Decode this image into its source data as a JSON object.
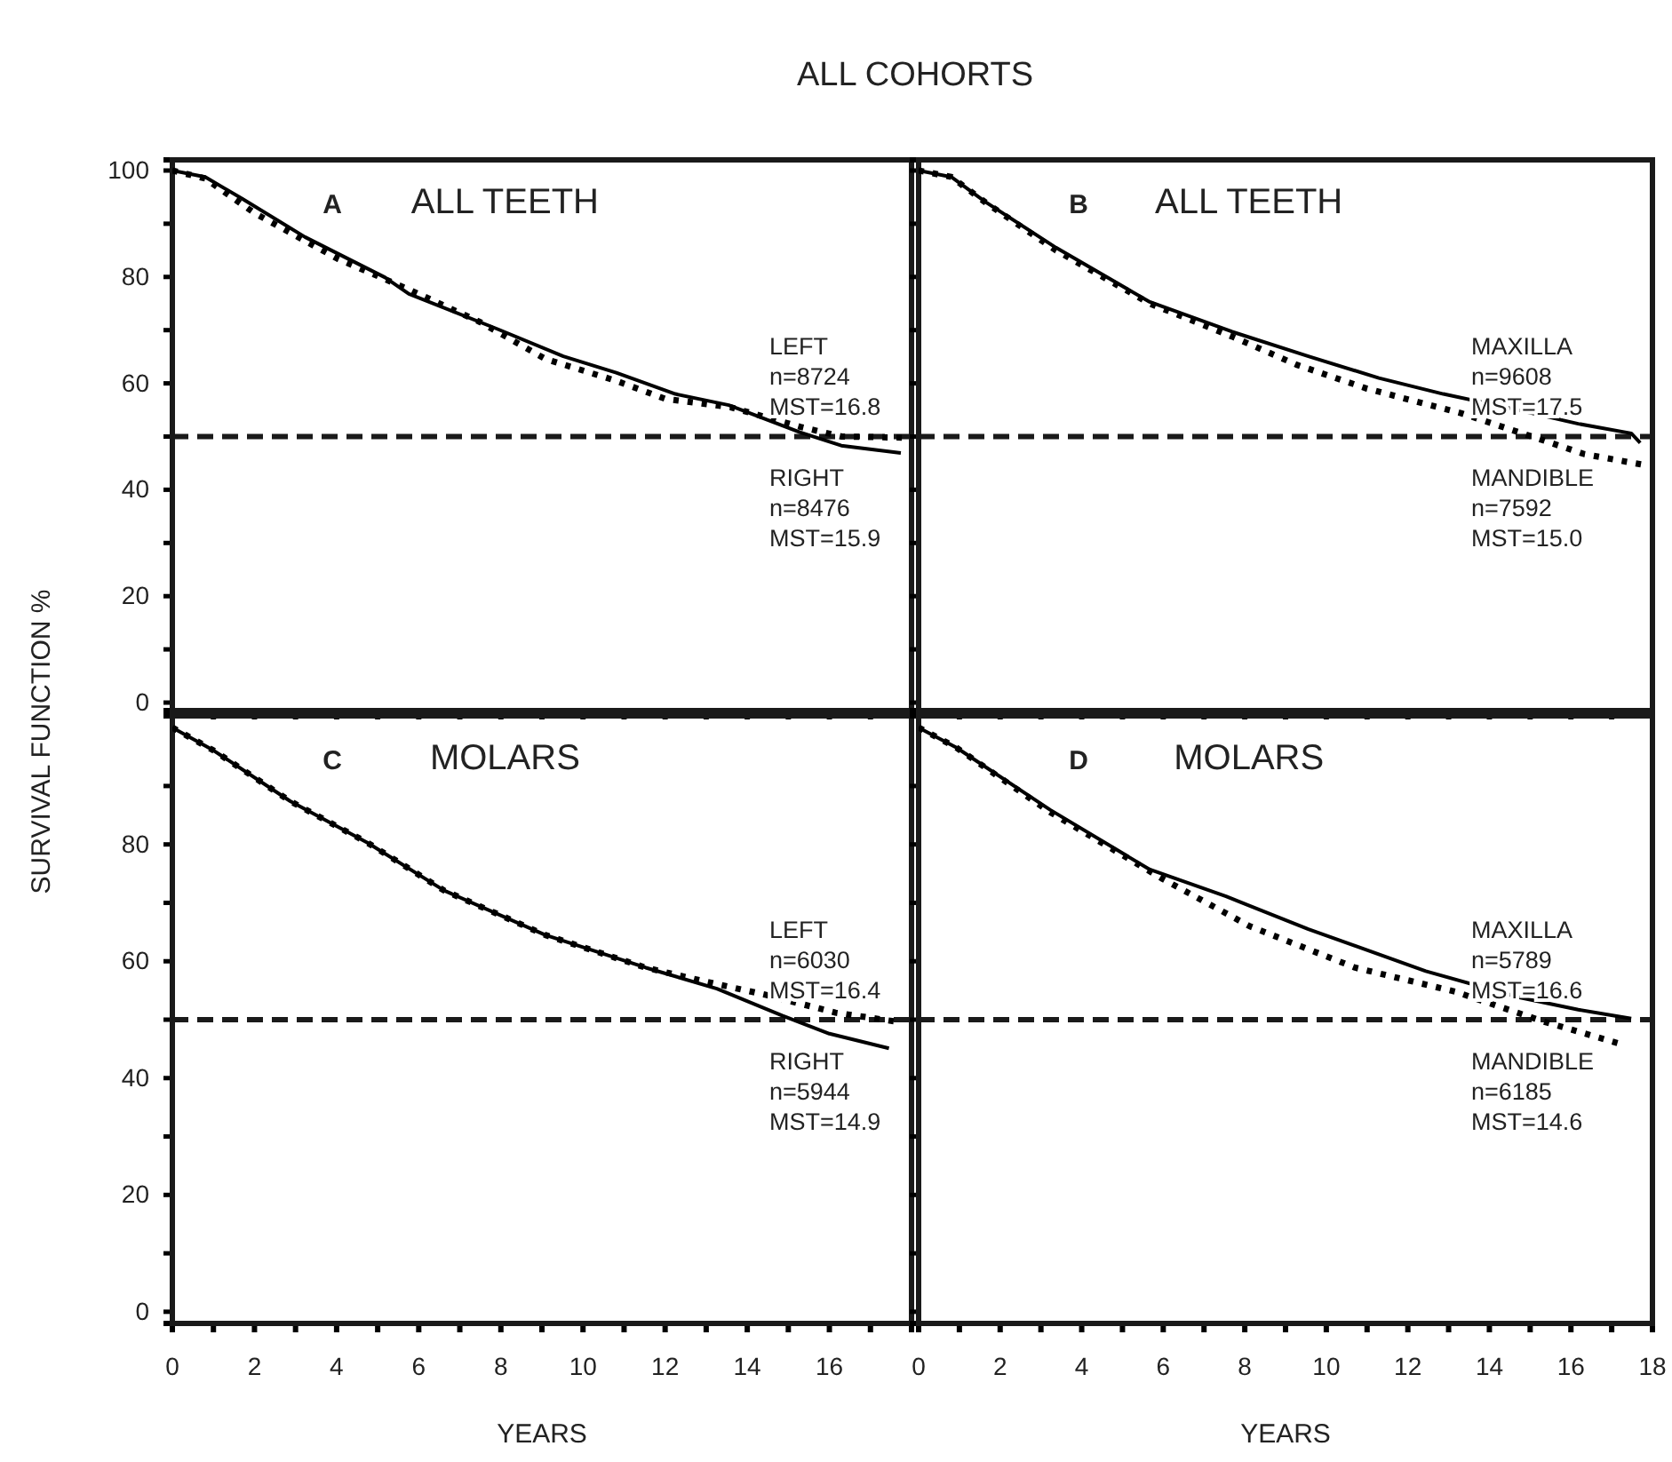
{
  "chart_data": [
    {
      "type": "line",
      "title": "ALL TEETH",
      "ylabel": "SURVIVAL FUNCTION  %",
      "annotations": [
        "ALL COHORTS",
        "A",
        "n=8724",
        "MST=16.8",
        "n=8476",
        "MST=15.9"
      ],
      "xlim": [
        0,
        18
      ],
      "xticks": [
        0,
        {
          "value": 1,
          "label": null
        },
        2,
        {
          "value": 3,
          "label": null
        },
        4,
        {
          "value": 5,
          "label": null
        },
        6,
        {
          "value": 7,
          "label": null
        },
        8,
        {
          "value": 9,
          "label": null
        },
        10,
        {
          "value": 11,
          "label": null
        },
        12,
        {
          "value": 13,
          "label": null
        },
        14,
        {
          "value": 15,
          "label": null
        },
        16,
        {
          "value": 17,
          "label": null
        }
      ],
      "ylim": [
        -1.5,
        102
      ],
      "yticks": [
        0,
        {
          "value": 10,
          "label": null
        },
        20,
        {
          "value": 30,
          "label": null
        },
        40,
        {
          "value": 50,
          "label": null
        },
        60,
        {
          "value": 70,
          "label": null
        },
        80,
        {
          "value": 90,
          "label": null
        },
        100
      ],
      "tick_labels": "y",
      "ref_lines": [
        {
          "axis": "y",
          "value": 50,
          "line_style": "dashed"
        }
      ],
      "series": [
        {
          "name": "LEFT",
          "color": "#000000",
          "line_style": "dotted",
          "x": [
            0,
            0.8,
            2.0,
            4.03,
            5.8,
            7.5,
            9.08,
            10.8,
            12.0,
            13.6,
            15.3,
            16.3,
            17.8
          ],
          "values": [
            100,
            98.5,
            92.0,
            83.4,
            77.5,
            71.5,
            64.6,
            60.5,
            57.1,
            55.5,
            51.8,
            50.0,
            49.8
          ]
        },
        {
          "name": "RIGHT",
          "color": "#000000",
          "line_style": "solid",
          "x": [
            0,
            0.8,
            1.72,
            3.23,
            5.18,
            5.76,
            7.92,
            9.52,
            10.81,
            12.25,
            13.55,
            15.28,
            16.29,
            17.74
          ],
          "values": [
            100,
            98.8,
            94.6,
            87.5,
            79.9,
            76.8,
            70.2,
            65.1,
            62.0,
            58.0,
            55.9,
            50.8,
            48.3,
            46.9
          ]
        }
      ]
    },
    {
      "type": "line",
      "title": "ALL TEETH",
      "annotations": [
        "B",
        "n=9608",
        "MST=17.5",
        "n=7592",
        "MST=15.0"
      ],
      "xlim": [
        0,
        18
      ],
      "xticks": [
        0,
        {
          "value": 1,
          "label": null
        },
        2,
        {
          "value": 3,
          "label": null
        },
        4,
        {
          "value": 5,
          "label": null
        },
        6,
        {
          "value": 7,
          "label": null
        },
        8,
        {
          "value": 9,
          "label": null
        },
        10,
        {
          "value": 11,
          "label": null
        },
        12,
        {
          "value": 13,
          "label": null
        },
        14,
        {
          "value": 15,
          "label": null
        },
        16,
        {
          "value": 17,
          "label": null
        },
        18
      ],
      "ylim": [
        -1.5,
        102
      ],
      "yticks": [
        0,
        10,
        20,
        30,
        40,
        50,
        60,
        70,
        80,
        90,
        100
      ],
      "tick_labels": false,
      "ref_lines": [
        {
          "axis": "y",
          "value": 50,
          "line_style": "dashed"
        }
      ],
      "series": [
        {
          "name": "MAXILLA",
          "color": "#000000",
          "line_style": "solid",
          "x": [
            0,
            0.8,
            1.64,
            3.37,
            5.67,
            7.69,
            9.56,
            11.29,
            12.87,
            14.46,
            16.18,
            17.48,
            17.7
          ],
          "values": [
            100,
            98.8,
            94.1,
            85.5,
            75.3,
            69.7,
            65.1,
            61.0,
            58.0,
            55.4,
            52.4,
            50.6,
            48.8
          ]
        },
        {
          "name": "MANDIBLE",
          "color": "#000000",
          "line_style": "dotted",
          "x": [
            0,
            0.8,
            1.64,
            3.37,
            5.67,
            7.69,
            9.27,
            11.0,
            13.3,
            15.32,
            16.33,
            17.77
          ],
          "values": [
            100,
            98.8,
            94.0,
            85.0,
            75.0,
            68.8,
            63.5,
            59.0,
            54.4,
            49.3,
            46.7,
            44.7
          ]
        }
      ]
    },
    {
      "type": "line",
      "title": "MOLARS",
      "xlabel": "YEARS",
      "annotations": [
        "C",
        "n=6030",
        "MST=16.4",
        "n=5944",
        "MST=14.9"
      ],
      "xlim": [
        0,
        18
      ],
      "xticks": [
        0,
        {
          "value": 1,
          "label": null
        },
        2,
        {
          "value": 3,
          "label": null
        },
        4,
        {
          "value": 5,
          "label": null
        },
        6,
        {
          "value": 7,
          "label": null
        },
        8,
        {
          "value": 9,
          "label": null
        },
        10,
        {
          "value": 11,
          "label": null
        },
        12,
        {
          "value": 13,
          "label": null
        },
        14,
        {
          "value": 15,
          "label": null
        },
        16,
        {
          "value": 17,
          "label": null
        }
      ],
      "ylim": [
        -2,
        102
      ],
      "yticks": [
        0,
        {
          "value": 10,
          "label": null
        },
        20,
        {
          "value": 30,
          "label": null
        },
        40,
        {
          "value": 50,
          "label": null
        },
        60,
        {
          "value": 70,
          "label": null
        },
        80,
        {
          "value": 90,
          "label": null
        }
      ],
      "ref_lines": [
        {
          "axis": "y",
          "value": 50,
          "line_style": "dashed"
        }
      ],
      "series": [
        {
          "name": "LEFT",
          "color": "#000000",
          "line_style": "dotted",
          "x": [
            0,
            1.0,
            2.87,
            4.75,
            6.62,
            9.08,
            11.53,
            13.0,
            14.42,
            16.15,
            17.6
          ],
          "values": [
            100,
            96.1,
            87.4,
            80.3,
            72.1,
            64.5,
            58.9,
            56.5,
            54.3,
            51.2,
            49.7
          ]
        },
        {
          "name": "RIGHT",
          "color": "#000000",
          "line_style": "solid",
          "x": [
            0,
            1.0,
            2.87,
            4.75,
            6.62,
            9.08,
            11.53,
            13.26,
            14.85,
            16.0,
            17.45
          ],
          "values": [
            100,
            96.1,
            87.4,
            80.3,
            72.1,
            64.5,
            58.9,
            55.3,
            50.7,
            47.6,
            45.1
          ]
        }
      ]
    },
    {
      "type": "line",
      "title": "MOLARS",
      "xlabel": "YEARS",
      "annotations": [
        "D",
        "n=5789",
        "MST=16.6",
        "n=6185",
        "MST=14.6"
      ],
      "xlim": [
        0,
        18
      ],
      "xticks": [
        0,
        {
          "value": 1,
          "label": null
        },
        2,
        {
          "value": 3,
          "label": null
        },
        4,
        {
          "value": 5,
          "label": null
        },
        6,
        {
          "value": 7,
          "label": null
        },
        8,
        {
          "value": 9,
          "label": null
        },
        10,
        {
          "value": 11,
          "label": null
        },
        12,
        {
          "value": 13,
          "label": null
        },
        14,
        {
          "value": 15,
          "label": null
        },
        16,
        {
          "value": 17,
          "label": null
        },
        18
      ],
      "ylim": [
        -2,
        102
      ],
      "yticks": [
        0,
        {
          "value": 10,
          "label": null
        },
        20,
        {
          "value": 30,
          "label": null
        },
        40,
        {
          "value": 50,
          "label": null
        },
        60,
        {
          "value": 70,
          "label": null
        },
        80,
        {
          "value": 90,
          "label": null
        }
      ],
      "tick_labels": "x",
      "ref_lines": [
        {
          "axis": "y",
          "value": 50,
          "line_style": "dashed"
        }
      ],
      "series": [
        {
          "name": "MAXILLA",
          "color": "#000000",
          "line_style": "solid",
          "x": [
            0,
            0.92,
            3.23,
            5.67,
            7.54,
            9.56,
            12.44,
            14.74,
            16.18,
            17.48
          ],
          "values": [
            100,
            96.6,
            85.9,
            75.7,
            71.1,
            65.5,
            58.3,
            53.8,
            51.7,
            50.2
          ]
        },
        {
          "name": "MANDIBLE",
          "color": "#000000",
          "line_style": "dotted",
          "x": [
            0,
            0.92,
            3.23,
            5.96,
            8.12,
            10.71,
            13.16,
            15.32,
            17.34
          ],
          "values": [
            100,
            96.6,
            85.5,
            74.2,
            66.0,
            58.9,
            54.8,
            49.7,
            45.6
          ]
        }
      ]
    }
  ]
}
